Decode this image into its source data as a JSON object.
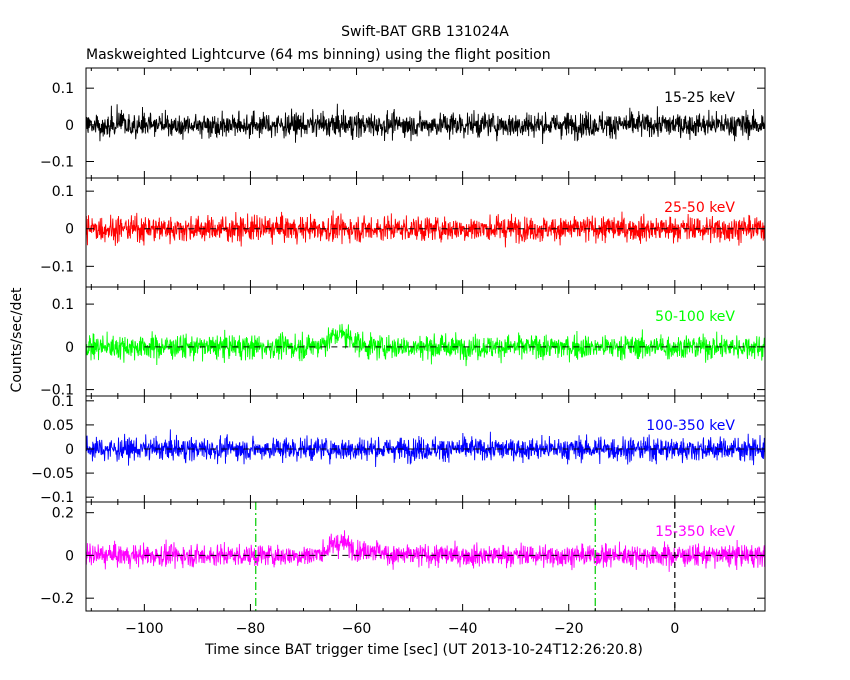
{
  "chart_data": {
    "type": "line",
    "title": "Swift-BAT GRB 131024A",
    "subtitle": "Maskweighted Lightcurve (64 ms binning) using the flight position",
    "xlabel": "Time since BAT trigger time [sec] (UT 2013-10-24T12:26:20.8)",
    "ylabel": "Counts/sec/det",
    "xlim": [
      -111,
      17
    ],
    "x_ticks": [
      -100,
      -80,
      -60,
      -40,
      -20,
      0
    ],
    "bin_seconds": 0.064,
    "grid": false,
    "markers": [
      {
        "x": -79,
        "color": "#00cc00",
        "style": "dash-dot",
        "panels": [
          4
        ]
      },
      {
        "x": -15,
        "color": "#00cc00",
        "style": "dash-dot",
        "panels": [
          4
        ]
      },
      {
        "x": 0,
        "color": "#000000",
        "style": "dashed",
        "panels": [
          4
        ]
      }
    ],
    "panels": [
      {
        "band": "15-25 keV",
        "color": "#000000",
        "ylim": [
          -0.145,
          0.155
        ],
        "yticks": [
          -0.1,
          0,
          0.1
        ],
        "ytick_labels": [
          "−0.1",
          "0",
          "0.1"
        ],
        "noise_amplitude": 0.038,
        "features": [],
        "zero_line": false
      },
      {
        "band": "25-50 keV",
        "color": "#ff0000",
        "ylim": [
          -0.155,
          0.135
        ],
        "yticks": [
          -0.1,
          0,
          0.1
        ],
        "ytick_labels": [
          "−0.1",
          "0",
          "0.1"
        ],
        "noise_amplitude": 0.038,
        "features": [],
        "zero_line": true
      },
      {
        "band": "50-100 keV",
        "color": "#00ff00",
        "ylim": [
          -0.115,
          0.14
        ],
        "yticks": [
          -0.1,
          0,
          0.1
        ],
        "ytick_labels": [
          "−0.1",
          "0",
          "0.1"
        ],
        "noise_amplitude": 0.032,
        "features": [
          {
            "x": -63,
            "width": 3,
            "height": 0.03
          }
        ],
        "zero_line": true
      },
      {
        "band": "100-350 keV",
        "color": "#0000ff",
        "ylim": [
          -0.11,
          0.11
        ],
        "yticks": [
          -0.1,
          -0.05,
          0,
          0.05,
          0.1
        ],
        "ytick_labels": [
          "−0.1",
          "−0.05",
          "0",
          "0.05",
          "0.1"
        ],
        "noise_amplitude": 0.027,
        "features": [],
        "zero_line": true
      },
      {
        "band": "15-350 keV",
        "color": "#ff00ff",
        "ylim": [
          -0.26,
          0.25
        ],
        "yticks": [
          -0.2,
          0,
          0.2
        ],
        "ytick_labels": [
          "−0.2",
          "0",
          "0.2"
        ],
        "noise_amplitude": 0.058,
        "features": [
          {
            "x": -63,
            "width": 3,
            "height": 0.06
          },
          {
            "x": -57,
            "width": 2,
            "height": 0.03
          }
        ],
        "zero_line": true
      }
    ],
    "x_tick_labels": [
      "−100",
      "−80",
      "−60",
      "−40",
      "−20",
      "0"
    ]
  }
}
